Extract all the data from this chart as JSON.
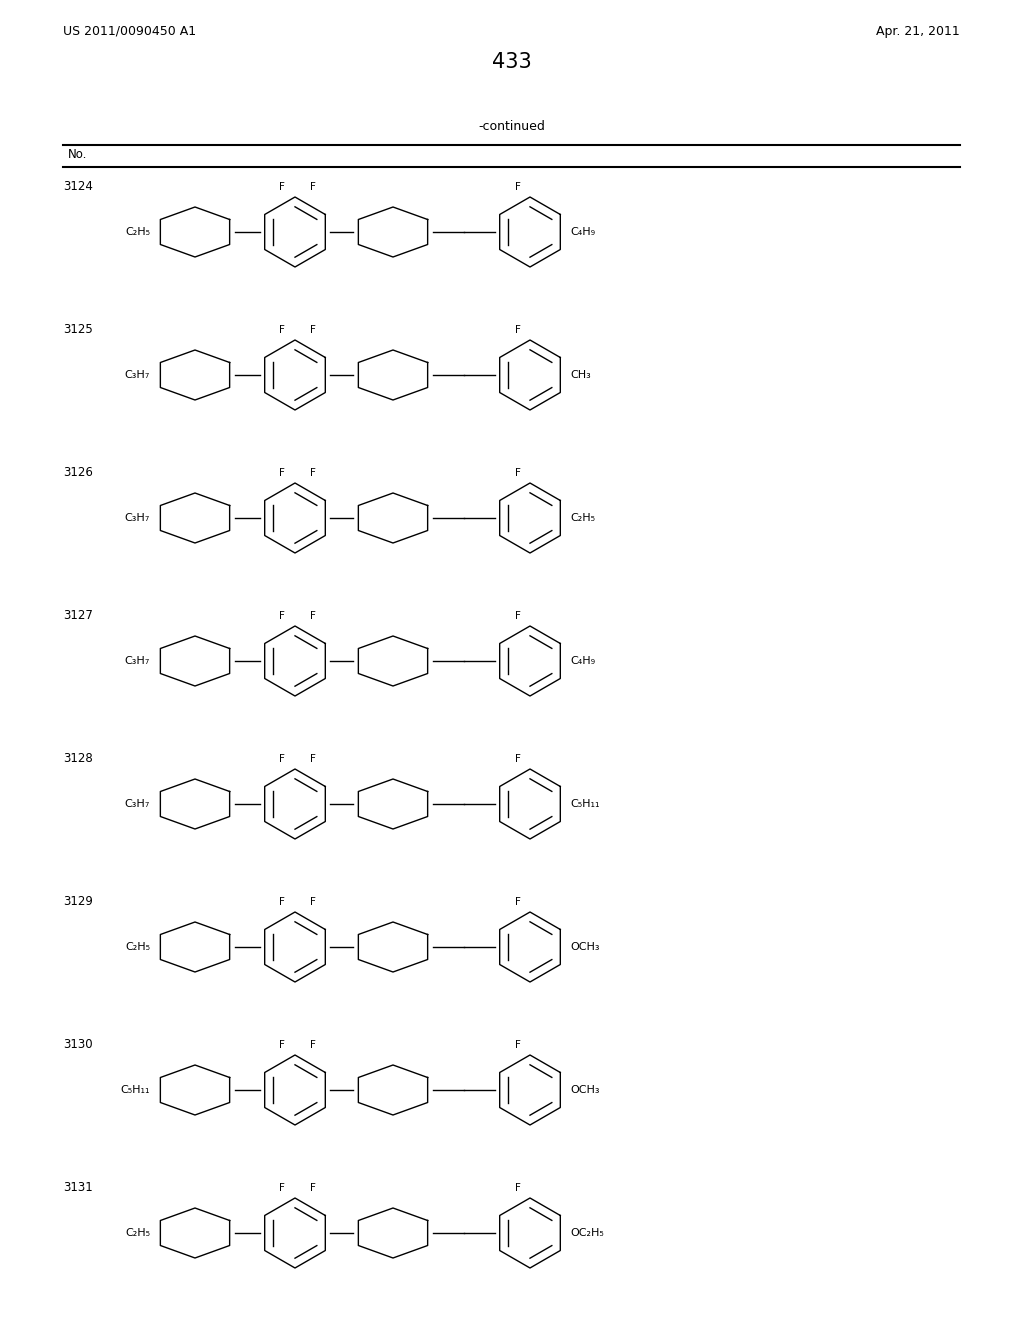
{
  "page_number": "433",
  "patent_number": "US 2011/0090450 A1",
  "patent_date": "Apr. 21, 2011",
  "continued_label": "-continued",
  "table_header": "No.",
  "background_color": "#ffffff",
  "compounds": [
    {
      "number": "3124",
      "left_group": "C₂H₅",
      "right_group": "C₄H₉",
      "right_substituent": "F"
    },
    {
      "number": "3125",
      "left_group": "C₃H₇",
      "right_group": "CH₃",
      "right_substituent": "F"
    },
    {
      "number": "3126",
      "left_group": "C₃H₇",
      "right_group": "C₂H₅",
      "right_substituent": "F"
    },
    {
      "number": "3127",
      "left_group": "C₃H₇",
      "right_group": "C₄H₉",
      "right_substituent": "F"
    },
    {
      "number": "3128",
      "left_group": "C₃H₇",
      "right_group": "C₅H₁₁",
      "right_substituent": "F"
    },
    {
      "number": "3129",
      "left_group": "C₂H₅",
      "right_group": "OCH₃",
      "right_substituent": "F"
    },
    {
      "number": "3130",
      "left_group": "C₅H₁₁",
      "right_group": "OCH₃",
      "right_substituent": "F"
    },
    {
      "number": "3131",
      "left_group": "C₂H₅",
      "right_group": "OC₂H₅",
      "right_substituent": "F"
    }
  ]
}
